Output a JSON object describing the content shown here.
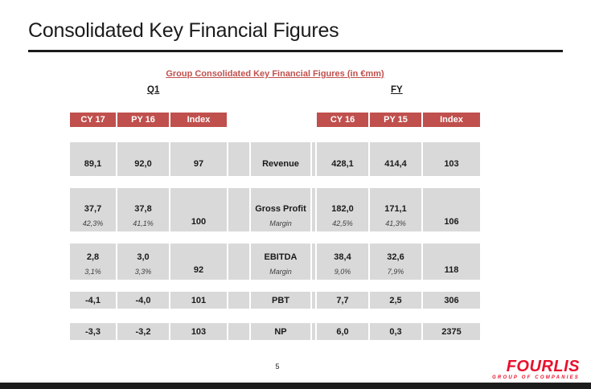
{
  "slide": {
    "title": "Consolidated Key Financial Figures",
    "subtitle": "Group Consolidated Key Financial Figures (in €mm)",
    "page_number": "5"
  },
  "table": {
    "group_labels": {
      "left": "Q1",
      "right": "FY"
    },
    "left_headers": [
      "CY 17",
      "PY 16",
      "Index"
    ],
    "right_headers": [
      "CY 16",
      "PY 15",
      "Index"
    ],
    "rows": [
      {
        "label": "Revenue",
        "q1": [
          "89,1",
          "92,0",
          "97"
        ],
        "fy": [
          "428,1",
          "414,4",
          "103"
        ]
      },
      {
        "label": "Gross Profit",
        "margin_label": "Margin",
        "q1": [
          "37,7",
          "37,8",
          "100"
        ],
        "q1_margins": [
          "42,3%",
          "41,1%"
        ],
        "fy": [
          "182,0",
          "171,1",
          "106"
        ],
        "fy_margins": [
          "42,5%",
          "41,3%"
        ]
      },
      {
        "label": "EBITDA",
        "margin_label": "Margin",
        "q1": [
          "2,8",
          "3,0",
          "92"
        ],
        "q1_margins": [
          "3,1%",
          "3,3%"
        ],
        "fy": [
          "38,4",
          "32,6",
          "118"
        ],
        "fy_margins": [
          "9,0%",
          "7,9%"
        ]
      },
      {
        "label": "PBT",
        "q1": [
          "-4,1",
          "-4,0",
          "101"
        ],
        "fy": [
          "7,7",
          "2,5",
          "306"
        ]
      },
      {
        "label": "NP",
        "q1": [
          "-3,3",
          "-3,2",
          "103"
        ],
        "fy": [
          "6,0",
          "0,3",
          "2375"
        ]
      }
    ]
  },
  "footer": {
    "logo_text": "FOURLIS",
    "logo_tagline": "GROUP OF COMPANIES"
  },
  "colors": {
    "accent_red": "#C0504D",
    "row_gray": "#D9D9D9",
    "logo_red": "#E8112D",
    "bar_dark": "#1C1C1C"
  }
}
